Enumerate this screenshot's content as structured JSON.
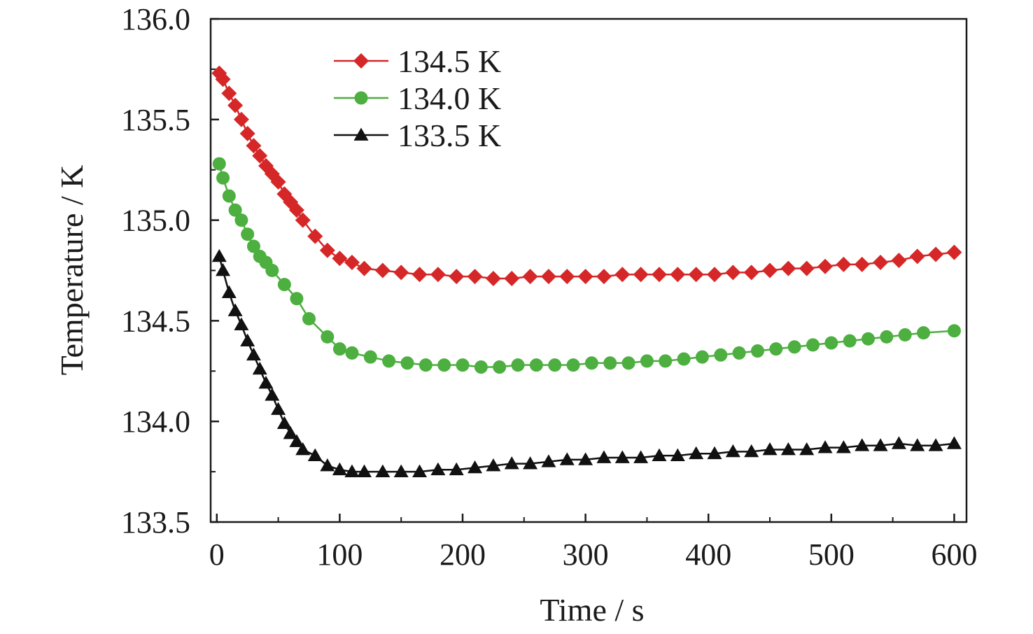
{
  "chart_data": {
    "type": "line",
    "xlabel": "Time / s",
    "ylabel": "Temperature / K",
    "xlim": [
      -5,
      610
    ],
    "ylim": [
      133.5,
      136.0
    ],
    "xticks": [
      "0",
      "100",
      "200",
      "300",
      "400",
      "500",
      "600"
    ],
    "yticks": [
      "133.5",
      "134.0",
      "134.5",
      "135.0",
      "135.5",
      "136.0"
    ],
    "legend_position": "top-left",
    "grid": false,
    "series": [
      {
        "name": "134.5 K",
        "color": "#d62728",
        "marker": "diamond",
        "x": [
          2,
          5,
          10,
          15,
          20,
          25,
          30,
          35,
          40,
          45,
          50,
          55,
          60,
          65,
          70,
          80,
          90,
          100,
          110,
          120,
          135,
          150,
          165,
          180,
          195,
          210,
          225,
          240,
          255,
          270,
          285,
          300,
          315,
          330,
          345,
          360,
          375,
          390,
          405,
          420,
          435,
          450,
          465,
          480,
          495,
          510,
          525,
          540,
          555,
          570,
          585,
          600
        ],
        "y": [
          135.73,
          135.7,
          135.63,
          135.57,
          135.5,
          135.43,
          135.37,
          135.32,
          135.27,
          135.23,
          135.19,
          135.13,
          135.09,
          135.05,
          135.0,
          134.92,
          134.85,
          134.81,
          134.79,
          134.76,
          134.75,
          134.74,
          134.73,
          134.73,
          134.72,
          134.72,
          134.71,
          134.71,
          134.72,
          134.72,
          134.72,
          134.72,
          134.72,
          134.73,
          134.73,
          134.73,
          134.73,
          134.73,
          134.73,
          134.74,
          134.74,
          134.75,
          134.76,
          134.76,
          134.77,
          134.78,
          134.78,
          134.79,
          134.8,
          134.82,
          134.83,
          134.84
        ]
      },
      {
        "name": "134.0 K",
        "color": "#4caf3f",
        "marker": "circle",
        "x": [
          2,
          5,
          10,
          15,
          20,
          25,
          30,
          35,
          40,
          45,
          55,
          65,
          75,
          90,
          100,
          110,
          125,
          140,
          155,
          170,
          185,
          200,
          215,
          230,
          245,
          260,
          275,
          290,
          305,
          320,
          335,
          350,
          365,
          380,
          395,
          410,
          425,
          440,
          455,
          470,
          485,
          500,
          515,
          530,
          545,
          560,
          575,
          600
        ],
        "y": [
          135.28,
          135.21,
          135.12,
          135.05,
          135.0,
          134.93,
          134.87,
          134.82,
          134.79,
          134.75,
          134.68,
          134.61,
          134.51,
          134.42,
          134.36,
          134.34,
          134.32,
          134.3,
          134.29,
          134.28,
          134.28,
          134.28,
          134.27,
          134.27,
          134.28,
          134.28,
          134.28,
          134.28,
          134.29,
          134.29,
          134.29,
          134.3,
          134.3,
          134.31,
          134.32,
          134.33,
          134.34,
          134.35,
          134.36,
          134.37,
          134.38,
          134.39,
          134.4,
          134.41,
          134.42,
          134.43,
          134.44,
          134.45
        ]
      },
      {
        "name": "133.5 K",
        "color": "#111111",
        "marker": "triangle",
        "x": [
          2,
          5,
          10,
          15,
          20,
          25,
          30,
          35,
          40,
          45,
          50,
          55,
          60,
          65,
          70,
          80,
          90,
          100,
          110,
          120,
          135,
          150,
          165,
          180,
          195,
          210,
          225,
          240,
          255,
          270,
          285,
          300,
          315,
          330,
          345,
          360,
          375,
          390,
          405,
          420,
          435,
          450,
          465,
          480,
          495,
          510,
          525,
          540,
          555,
          570,
          585,
          600
        ],
        "y": [
          134.82,
          134.75,
          134.64,
          134.55,
          134.48,
          134.4,
          134.33,
          134.26,
          134.19,
          134.13,
          134.06,
          133.99,
          133.94,
          133.9,
          133.86,
          133.83,
          133.78,
          133.76,
          133.75,
          133.75,
          133.75,
          133.75,
          133.75,
          133.76,
          133.76,
          133.77,
          133.78,
          133.79,
          133.79,
          133.8,
          133.81,
          133.81,
          133.82,
          133.82,
          133.82,
          133.83,
          133.83,
          133.84,
          133.84,
          133.85,
          133.85,
          133.86,
          133.86,
          133.86,
          133.87,
          133.87,
          133.88,
          133.88,
          133.89,
          133.88,
          133.88,
          133.89
        ]
      }
    ]
  }
}
